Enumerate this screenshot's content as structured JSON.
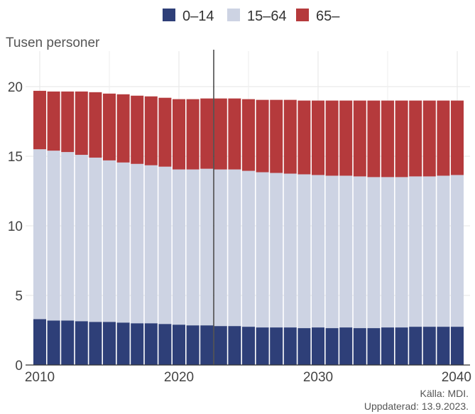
{
  "chart_data": {
    "type": "bar",
    "stacked": true,
    "ylabel": "Tusen personer",
    "ylim": [
      0,
      22.5
    ],
    "y_ticks": [
      0,
      5,
      10,
      15,
      20
    ],
    "x_ticks": [
      2010,
      2020,
      2030,
      2040
    ],
    "grid": true,
    "legend_placement": "top-center",
    "marker_year": 2022,
    "categories": [
      2010,
      2011,
      2012,
      2013,
      2014,
      2015,
      2016,
      2017,
      2018,
      2019,
      2020,
      2021,
      2022,
      2023,
      2024,
      2025,
      2026,
      2027,
      2028,
      2029,
      2030,
      2031,
      2032,
      2033,
      2034,
      2035,
      2036,
      2037,
      2038,
      2039,
      2040
    ],
    "series": [
      {
        "name": "0–14",
        "color": "#2e3f78",
        "values": [
          3.3,
          3.2,
          3.2,
          3.15,
          3.1,
          3.1,
          3.05,
          3.0,
          3.0,
          2.95,
          2.9,
          2.85,
          2.85,
          2.8,
          2.8,
          2.75,
          2.7,
          2.7,
          2.7,
          2.65,
          2.7,
          2.65,
          2.7,
          2.65,
          2.65,
          2.7,
          2.7,
          2.75,
          2.75,
          2.75,
          2.75
        ]
      },
      {
        "name": "15–64",
        "color": "#cdd3e3",
        "values": [
          12.2,
          12.2,
          12.1,
          11.95,
          11.8,
          11.6,
          11.5,
          11.45,
          11.35,
          11.3,
          11.15,
          11.2,
          11.25,
          11.25,
          11.25,
          11.2,
          11.15,
          11.1,
          11.05,
          11.05,
          10.95,
          10.95,
          10.9,
          10.9,
          10.85,
          10.8,
          10.8,
          10.8,
          10.8,
          10.85,
          10.9
        ]
      },
      {
        "name": "65–",
        "color": "#b53a3c",
        "values": [
          4.2,
          4.25,
          4.35,
          4.55,
          4.7,
          4.8,
          4.9,
          4.9,
          4.95,
          4.95,
          5.05,
          5.05,
          5.05,
          5.1,
          5.1,
          5.15,
          5.2,
          5.25,
          5.3,
          5.3,
          5.35,
          5.4,
          5.4,
          5.45,
          5.5,
          5.5,
          5.5,
          5.45,
          5.45,
          5.4,
          5.35
        ]
      }
    ],
    "source_line1": "Källa: MDI.",
    "source_line2": "Uppdaterad: 13.9.2023."
  }
}
